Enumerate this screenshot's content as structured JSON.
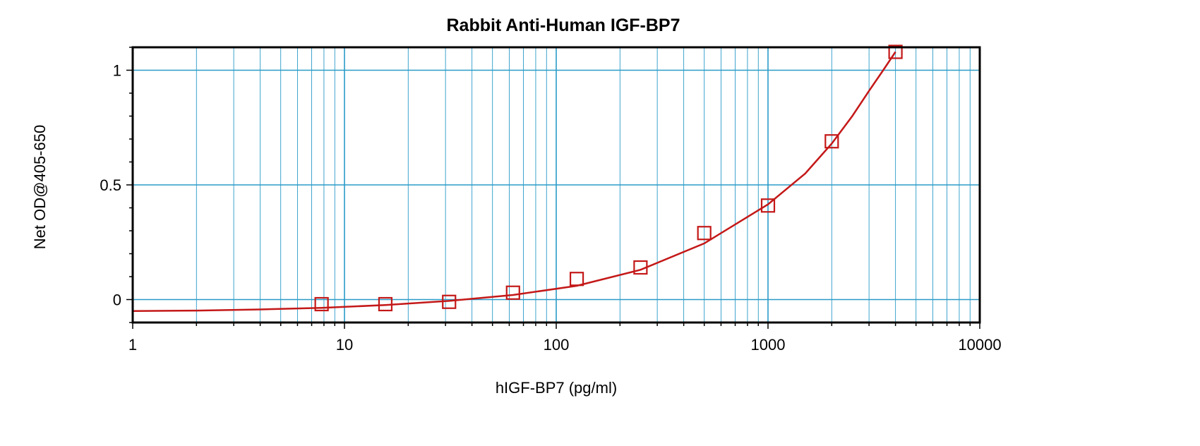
{
  "chart_data": {
    "type": "scatter",
    "title": "Rabbit Anti-Human IGF-BP7",
    "xlabel": "hIGF-BP7 (pg/ml)",
    "ylabel": "Net OD@405-650",
    "x_scale": "log",
    "xlim": [
      1,
      10000
    ],
    "ylim": [
      -0.1,
      1.1
    ],
    "x_ticks": [
      "1",
      "10",
      "100",
      "1000",
      "10000"
    ],
    "y_ticks": [
      {
        "value": 0,
        "label": "0"
      },
      {
        "value": 0.5,
        "label": "0.5"
      },
      {
        "value": 1,
        "label": "1"
      }
    ],
    "grid": true,
    "series": [
      {
        "points": [
          {
            "x": 7.8,
            "y": -0.02
          },
          {
            "x": 15.6,
            "y": -0.02
          },
          {
            "x": 31.2,
            "y": -0.01
          },
          {
            "x": 62.5,
            "y": 0.03
          },
          {
            "x": 125,
            "y": 0.09
          },
          {
            "x": 250,
            "y": 0.14
          },
          {
            "x": 500,
            "y": 0.29
          },
          {
            "x": 1000,
            "y": 0.41
          },
          {
            "x": 2000,
            "y": 0.69
          },
          {
            "x": 4000,
            "y": 1.08
          }
        ],
        "fit_curve": {
          "x": [
            1,
            2,
            4,
            7.8,
            15.6,
            31.2,
            62.5,
            125,
            250,
            500,
            1000,
            1500,
            2000,
            2500,
            3000,
            3500,
            4000
          ],
          "y": [
            -0.05,
            -0.048,
            -0.043,
            -0.036,
            -0.024,
            -0.006,
            0.02,
            0.06,
            0.13,
            0.245,
            0.415,
            0.55,
            0.68,
            0.8,
            0.91,
            1.0,
            1.08
          ]
        }
      }
    ],
    "colors": {
      "grid": "#2a9bc8",
      "series": "#c41818",
      "frame": "#000000"
    }
  }
}
